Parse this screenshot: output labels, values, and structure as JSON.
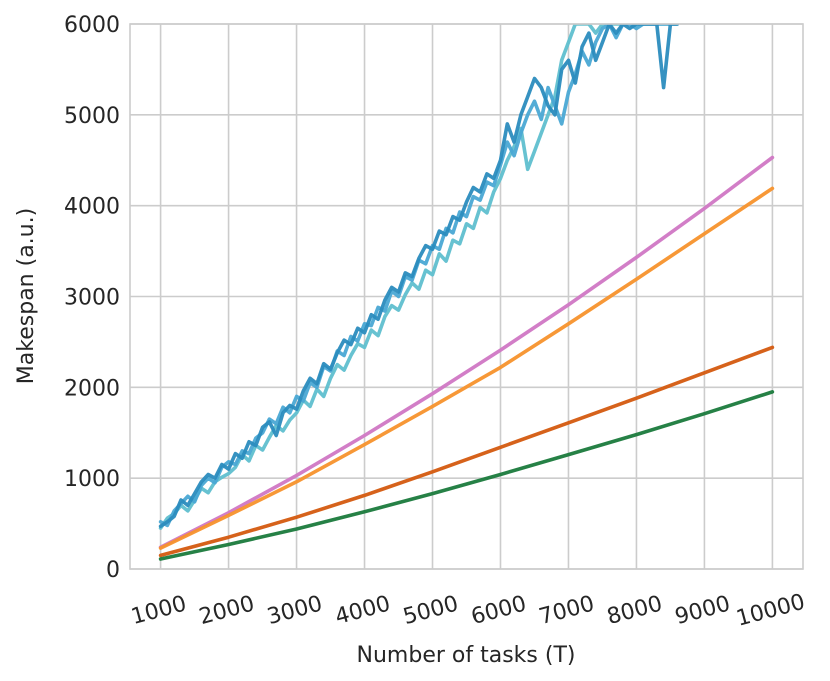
{
  "chart_data": {
    "type": "line",
    "xlabel": "Number of tasks (T)",
    "ylabel": "Makespan (a.u.)",
    "xlim": [
      550,
      10450
    ],
    "ylim": [
      0,
      6000
    ],
    "xticks": [
      1000,
      2000,
      3000,
      4000,
      5000,
      6000,
      7000,
      8000,
      9000,
      10000
    ],
    "xtick_labels": [
      "1000",
      "2000",
      "3000",
      "4000",
      "5000",
      "6000",
      "7000",
      "8000",
      "9000",
      "10000"
    ],
    "yticks": [
      0,
      1000,
      2000,
      3000,
      4000,
      5000,
      6000
    ],
    "ytick_labels": [
      "0",
      "1000",
      "2000",
      "3000",
      "4000",
      "5000",
      "6000"
    ],
    "grid": true,
    "legend": "none",
    "series": [
      {
        "color": "#5fbfcf",
        "x": [
          1000,
          1100,
          1200,
          1300,
          1400,
          1500,
          1600,
          1700,
          1800,
          1900,
          2000,
          2100,
          2200,
          2300,
          2400,
          2500,
          2600,
          2700,
          2800,
          2900,
          3000,
          3100,
          3200,
          3300,
          3400,
          3500,
          3600,
          3700,
          3800,
          3900,
          4000,
          4100,
          4200,
          4300,
          4400,
          4500,
          4600,
          4700,
          4800,
          4900,
          5000,
          5100,
          5200,
          5300,
          5400,
          5500,
          5600,
          5700,
          5800,
          5900,
          6000,
          6100,
          6200,
          6300,
          6400,
          6500,
          6600,
          6700,
          6800,
          6900,
          7000,
          7100,
          7200,
          7300,
          7400,
          7500,
          7600,
          7700,
          7800,
          7900,
          8000,
          8100,
          8200,
          8300,
          8400,
          8500,
          8600
        ],
        "values": [
          450,
          560,
          610,
          700,
          640,
          760,
          890,
          840,
          960,
          1010,
          1050,
          1120,
          1260,
          1190,
          1360,
          1310,
          1450,
          1580,
          1520,
          1640,
          1720,
          1860,
          1790,
          1980,
          1900,
          2100,
          2250,
          2190,
          2350,
          2480,
          2440,
          2630,
          2570,
          2780,
          2900,
          2850,
          3020,
          3150,
          3080,
          3290,
          3240,
          3470,
          3390,
          3620,
          3580,
          3800,
          3750,
          3980,
          3920,
          4150,
          4300,
          4500,
          4650,
          4850,
          4400,
          4600,
          4800,
          5000,
          5200,
          5600,
          5800,
          6000,
          6000,
          6000,
          5900,
          6000,
          6000,
          6000,
          6000,
          6000,
          6000,
          6000,
          6000,
          6000,
          6000,
          6000,
          6000
        ]
      },
      {
        "color": "#4aa8d4",
        "x": [
          1000,
          1100,
          1200,
          1300,
          1400,
          1500,
          1600,
          1700,
          1800,
          1900,
          2000,
          2100,
          2200,
          2300,
          2400,
          2500,
          2600,
          2700,
          2800,
          2900,
          3000,
          3100,
          3200,
          3300,
          3400,
          3500,
          3600,
          3700,
          3800,
          3900,
          4000,
          4100,
          4200,
          4300,
          4400,
          4500,
          4600,
          4700,
          4800,
          4900,
          5000,
          5100,
          5200,
          5300,
          5400,
          5500,
          5600,
          5700,
          5800,
          5900,
          6000,
          6100,
          6200,
          6300,
          6400,
          6500,
          6600,
          6700,
          6800,
          6900,
          7000,
          7100,
          7200,
          7300,
          7400,
          7500,
          7600,
          7700,
          7800,
          7900,
          8000,
          8100,
          8200,
          8300,
          8400,
          8500,
          8600
        ],
        "values": [
          520,
          480,
          640,
          720,
          800,
          740,
          920,
          1000,
          950,
          1120,
          1180,
          1150,
          1300,
          1270,
          1440,
          1500,
          1650,
          1600,
          1780,
          1720,
          1900,
          1850,
          2050,
          2000,
          2230,
          2180,
          2400,
          2350,
          2560,
          2510,
          2700,
          2680,
          2880,
          2840,
          3060,
          3000,
          3220,
          3180,
          3400,
          3360,
          3560,
          3520,
          3750,
          3700,
          3930,
          3880,
          4100,
          4060,
          4260,
          4220,
          4450,
          4700,
          4550,
          4800,
          5000,
          5150,
          4950,
          5300,
          5100,
          4900,
          5250,
          5450,
          5700,
          5550,
          5800,
          5950,
          6000,
          5850,
          6000,
          6000,
          5950,
          6000,
          6000,
          6000,
          6000,
          6000,
          6000
        ]
      },
      {
        "color": "#2b8cbe",
        "x": [
          1000,
          1100,
          1200,
          1300,
          1400,
          1500,
          1600,
          1700,
          1800,
          1900,
          2000,
          2100,
          2200,
          2300,
          2400,
          2500,
          2600,
          2700,
          2800,
          2900,
          3000,
          3100,
          3200,
          3300,
          3400,
          3500,
          3600,
          3700,
          3800,
          3900,
          4000,
          4100,
          4200,
          4300,
          4400,
          4500,
          4600,
          4700,
          4800,
          4900,
          5000,
          5100,
          5200,
          5300,
          5400,
          5500,
          5600,
          5700,
          5800,
          5900,
          6000,
          6100,
          6200,
          6300,
          6400,
          6500,
          6600,
          6700,
          6800,
          6900,
          7000,
          7100,
          7200,
          7300,
          7400,
          7500,
          7600,
          7700,
          7800,
          7900,
          8000,
          8100,
          8200,
          8300,
          8400,
          8500,
          8600
        ],
        "values": [
          470,
          520,
          580,
          760,
          700,
          830,
          960,
          1040,
          1000,
          1150,
          1100,
          1270,
          1220,
          1400,
          1360,
          1560,
          1620,
          1470,
          1720,
          1800,
          1760,
          1960,
          2100,
          2040,
          2260,
          2200,
          2380,
          2520,
          2470,
          2650,
          2600,
          2800,
          2750,
          2960,
          3100,
          3050,
          3260,
          3220,
          3420,
          3560,
          3520,
          3720,
          3680,
          3880,
          3840,
          4040,
          4200,
          4150,
          4350,
          4300,
          4500,
          4900,
          4700,
          5000,
          5200,
          5400,
          5300,
          5100,
          5000,
          5500,
          5600,
          5350,
          5750,
          5900,
          5600,
          5800,
          6000,
          5900,
          6000,
          5950,
          6000,
          6000,
          6000,
          6000,
          5300,
          6000,
          6000
        ]
      },
      {
        "color": "#d077c4",
        "x": [
          1000,
          2000,
          3000,
          4000,
          5000,
          6000,
          7000,
          8000,
          9000,
          10000
        ],
        "values": [
          240,
          620,
          1030,
          1470,
          1930,
          2410,
          2910,
          3430,
          3970,
          4530
        ]
      },
      {
        "color": "#f7922c",
        "x": [
          1000,
          2000,
          3000,
          4000,
          5000,
          6000,
          7000,
          8000,
          9000,
          10000
        ],
        "values": [
          230,
          590,
          960,
          1370,
          1790,
          2220,
          2700,
          3190,
          3690,
          4190
        ]
      },
      {
        "color": "#d45a0f",
        "x": [
          1000,
          2000,
          3000,
          4000,
          5000,
          6000,
          7000,
          8000,
          9000,
          10000
        ],
        "values": [
          150,
          350,
          570,
          810,
          1070,
          1340,
          1610,
          1880,
          2160,
          2440
        ]
      },
      {
        "color": "#1a7a3c",
        "x": [
          1000,
          2000,
          3000,
          4000,
          5000,
          6000,
          7000,
          8000,
          9000,
          10000
        ],
        "values": [
          110,
          270,
          440,
          630,
          830,
          1040,
          1260,
          1480,
          1710,
          1950
        ]
      }
    ]
  }
}
